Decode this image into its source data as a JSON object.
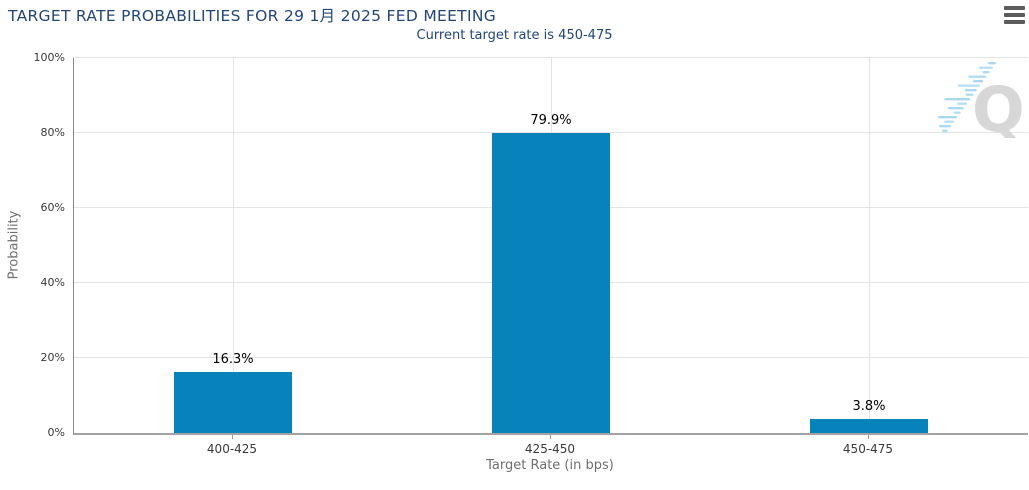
{
  "header": {
    "menu_icon": "hamburger-icon"
  },
  "chart_data": {
    "type": "bar",
    "title": "TARGET RATE PROBABILITIES FOR 29 1月 2025 FED MEETING",
    "subtitle": "Current target rate is 450-475",
    "categories": [
      "400-425",
      "425-450",
      "450-475"
    ],
    "values": [
      16.3,
      79.9,
      3.8
    ],
    "value_labels": [
      "16.3%",
      "79.9%",
      "3.8%"
    ],
    "xlabel": "Target Rate (in bps)",
    "ylabel": "Probability",
    "ylim": [
      0,
      100
    ],
    "ytick_step": 20,
    "ytick_labels": [
      "0%",
      "20%",
      "40%",
      "60%",
      "80%",
      "100%"
    ],
    "grid": true,
    "legend": false,
    "bar_color": "#0782ba"
  },
  "watermark": {
    "letter": "Q"
  },
  "colors": {
    "title": "#234676",
    "bar": "#0782ba",
    "gridline": "#e4e4e4",
    "axis_line": "#a2a2a2",
    "tick_label": "#3a3a3a",
    "axis_title": "#6f6f6f",
    "value_label": "#000000",
    "watermark_q": "#d7d7d7",
    "watermark_dash": "#a9d9f0"
  }
}
